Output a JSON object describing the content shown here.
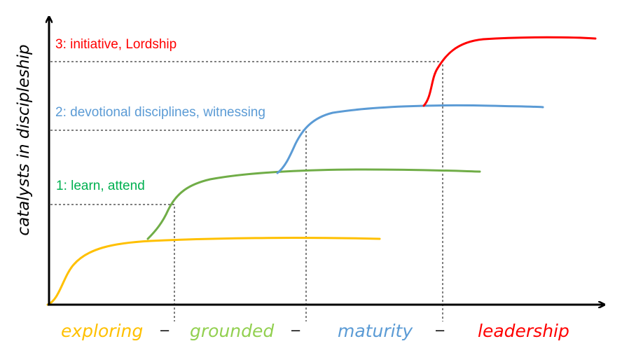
{
  "diagram": {
    "y_axis_label": "catalysts in discipleship",
    "curves": [
      {
        "name": "exploring",
        "color": "#FFC000"
      },
      {
        "name": "grounded",
        "color": "#70AD47"
      },
      {
        "name": "maturity",
        "color": "#5B9BD5"
      },
      {
        "name": "leadership",
        "color": "#FF0000"
      }
    ],
    "level_labels": [
      {
        "text": "1: learn, attend",
        "color": "#00B050"
      },
      {
        "text": "2: devotional disciplines, witnessing",
        "color": "#5B9BD5"
      },
      {
        "text": "3: initiative, Lordship",
        "color": "#FF0000"
      }
    ],
    "stage_labels": [
      {
        "text": "exploring",
        "color": "#FFC000"
      },
      {
        "text": "grounded",
        "color": "#92D050"
      },
      {
        "text": "maturity",
        "color": "#5B9BD5"
      },
      {
        "text": "leadership",
        "color": "#FF0000"
      }
    ],
    "separator": "–",
    "axis_color": "#000000",
    "guide_color": "#000000"
  }
}
